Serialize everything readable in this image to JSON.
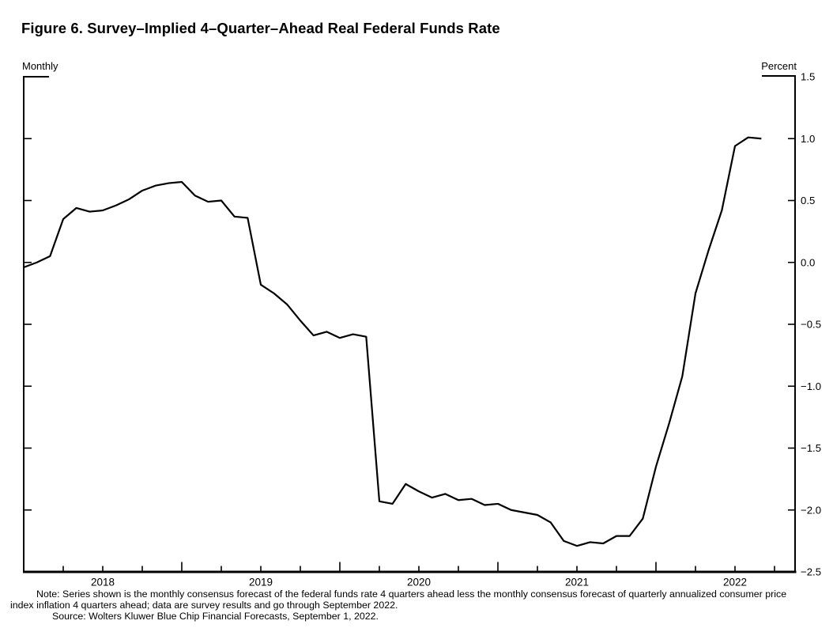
{
  "page": {
    "title": "Figure 6. Survey–Implied 4–Quarter–Ahead Real Federal Funds Rate"
  },
  "chart": {
    "freq_label": "Monthly",
    "unit_label": "Percent"
  },
  "chart_data": {
    "type": "line",
    "series_name": "Survey-implied 4-quarter-ahead real federal funds rate",
    "frequency": "monthly",
    "x_start": "2018-01",
    "x_end": "2022-09",
    "values": [
      -0.04,
      0.0,
      0.05,
      0.35,
      0.44,
      0.41,
      0.42,
      0.46,
      0.51,
      0.58,
      0.62,
      0.64,
      0.65,
      0.54,
      0.49,
      0.5,
      0.37,
      0.36,
      -0.18,
      -0.25,
      -0.34,
      -0.47,
      -0.59,
      -0.56,
      -0.61,
      -0.58,
      -0.6,
      -1.93,
      -1.95,
      -1.79,
      -1.85,
      -1.9,
      -1.87,
      -1.92,
      -1.91,
      -1.96,
      -1.95,
      -2.0,
      -2.02,
      -2.04,
      -2.1,
      -2.25,
      -2.29,
      -2.26,
      -2.27,
      -2.21,
      -2.21,
      -2.07,
      -1.65,
      -1.3,
      -0.92,
      -0.25,
      0.1,
      0.42,
      0.94,
      1.01,
      1.0
    ],
    "x_year_labels": [
      "2018",
      "2019",
      "2020",
      "2021",
      "2022"
    ],
    "y_tick_labels": [
      "1.5",
      "1.0",
      "0.5",
      "0.0",
      "−0.5",
      "−1.0",
      "−1.5",
      "−2.0",
      "−2.5"
    ],
    "y_tick_values": [
      1.5,
      1.0,
      0.5,
      0.0,
      -0.5,
      -1.0,
      -1.5,
      -2.0,
      -2.5
    ],
    "ylim": [
      -2.5,
      1.5
    ],
    "ylabel": "Percent",
    "grid": false,
    "legend": "none",
    "line_color": "#000000",
    "background_color": "#ffffff"
  },
  "notes": {
    "note": "Note: Series shown is the monthly consensus forecast of the federal funds rate 4 quarters ahead less the monthly consensus forecast of quarterly annualized consumer price index inflation 4 quarters ahead; data are survey results and go through September 2022.",
    "source": "Source: Wolters Kluwer Blue Chip Financial Forecasts, September 1, 2022."
  }
}
